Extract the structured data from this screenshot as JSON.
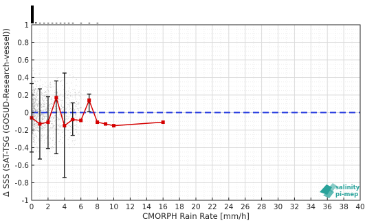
{
  "chart_data": {
    "type": "line",
    "xlabel": "CMORPH Rain Rate [mm/h]",
    "ylabel": "Δ SSS (SAT-TSG (GOSUD-Research-vessel))",
    "xlim": [
      0,
      40
    ],
    "ylim": [
      -1,
      1
    ],
    "x_ticks": [
      "0",
      "2",
      "4",
      "6",
      "8",
      "10",
      "12",
      "14",
      "16",
      "18",
      "20",
      "22",
      "24",
      "26",
      "28",
      "30",
      "32",
      "34",
      "36",
      "38",
      "40"
    ],
    "y_ticks": [
      "1",
      "0.8",
      "0.6",
      "0.4",
      "0.2",
      "0",
      "-0.2",
      "-0.4",
      "-0.6",
      "-0.8",
      "-1"
    ],
    "grid": true,
    "zero_line": {
      "y": 0,
      "color": "#2b3fe0",
      "style": "dashed"
    },
    "series": [
      {
        "type": "line",
        "color": "#d40000",
        "x": [
          0,
          1,
          2,
          3,
          4,
          5,
          6,
          7,
          8,
          9,
          10,
          16
        ],
        "y": [
          -0.06,
          -0.13,
          -0.11,
          0.17,
          -0.15,
          -0.08,
          -0.09,
          0.14,
          -0.11,
          -0.13,
          -0.15,
          -0.11
        ],
        "error_bars": [
          {
            "x": 0,
            "low": -0.45,
            "high": 0.33
          },
          {
            "x": 1,
            "low": -0.53,
            "high": 0.27
          },
          {
            "x": 2,
            "low": -0.41,
            "high": 0.18
          },
          {
            "x": 3,
            "low": -0.47,
            "high": 0.36
          },
          {
            "x": 4,
            "low": -0.74,
            "high": 0.45
          },
          {
            "x": 5,
            "low": -0.26,
            "high": 0.11
          },
          {
            "x": 7,
            "low": 0.01,
            "high": 0.21
          }
        ]
      }
    ],
    "scatter_cloud": {
      "color": "#9a9a9a",
      "x_range": [
        0,
        6
      ],
      "y_range": [
        -0.7,
        0.6
      ]
    },
    "histogram_top": [
      {
        "x": 0,
        "value": 1.0
      },
      {
        "x": 0.5,
        "value": 0.06
      },
      {
        "x": 1,
        "value": 0.03
      },
      {
        "x": 1.5,
        "value": 0.02
      },
      {
        "x": 2,
        "value": 0.015
      },
      {
        "x": 2.5,
        "value": 0.01
      },
      {
        "x": 3,
        "value": 0.008
      },
      {
        "x": 3.5,
        "value": 0.006
      },
      {
        "x": 4,
        "value": 0.005
      },
      {
        "x": 4.5,
        "value": 0.004
      },
      {
        "x": 5,
        "value": 0.003
      },
      {
        "x": 6,
        "value": 0.002
      },
      {
        "x": 7,
        "value": 0.002
      },
      {
        "x": 8,
        "value": 0.001
      }
    ]
  },
  "logo": {
    "line1": "salinity",
    "line2": "pi-mep",
    "color": "#2aa39b"
  }
}
